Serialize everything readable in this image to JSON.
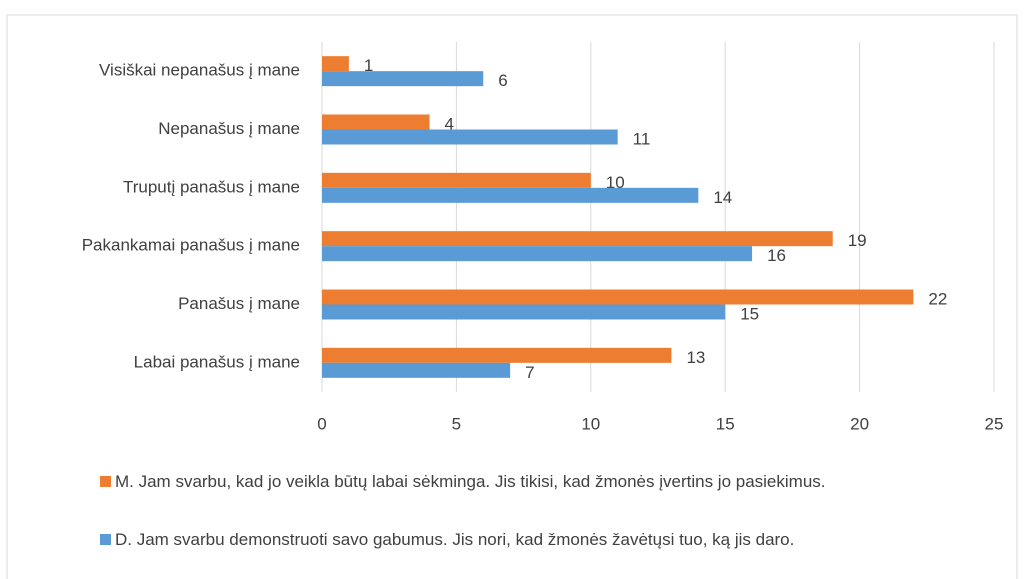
{
  "chart_data": {
    "type": "bar",
    "orientation": "horizontal",
    "categories": [
      "Visiškai nepanašus į mane",
      "Nepanašus į mane",
      "Truputį panašus į mane",
      "Pakankamai panašus į mane",
      "Panašus į mane",
      "Labai panašus į mane"
    ],
    "series": [
      {
        "name": "M. Jam svarbu, kad jo veikla būtų labai sėkminga. Jis tikisi, kad žmonės įvertins jo pasiekimus.",
        "color": "#ed7d31",
        "values": [
          1,
          4,
          10,
          19,
          22,
          13
        ]
      },
      {
        "name": "D. Jam svarbu demonstruoti savo gabumus. Jis nori, kad žmonės žavėtųsi tuo, ką jis daro.",
        "color": "#5b9bd5",
        "values": [
          6,
          11,
          14,
          16,
          15,
          7
        ]
      }
    ],
    "xlim": [
      0,
      25
    ],
    "xticks": [
      0,
      5,
      10,
      15,
      20,
      25
    ],
    "grid": true,
    "legend": "bottom"
  }
}
